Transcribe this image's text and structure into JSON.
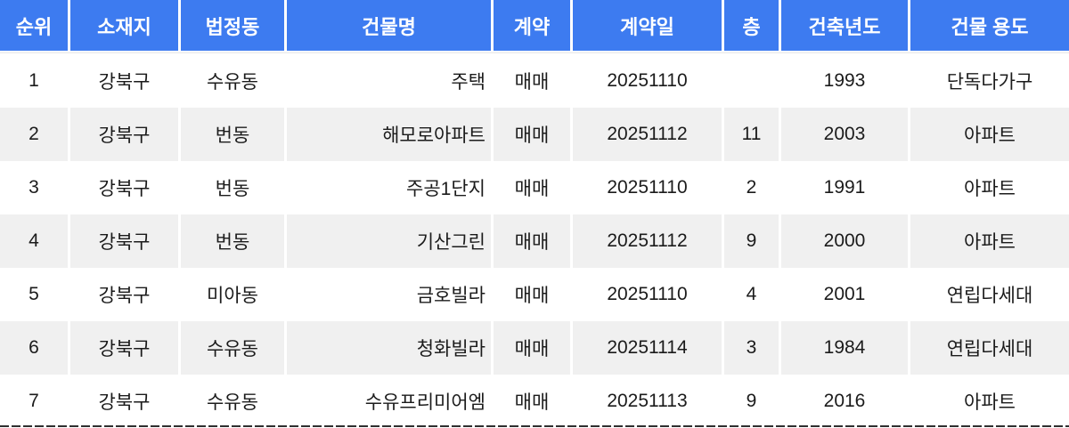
{
  "chart_data": {
    "type": "table",
    "columns": [
      "순위",
      "소재지",
      "법정동",
      "건물명",
      "계약",
      "계약일",
      "층",
      "건축년도",
      "건물 용도"
    ],
    "rows": [
      [
        "1",
        "강북구",
        "수유동",
        "주택",
        "매매",
        "20251110",
        "",
        "1993",
        "단독다가구"
      ],
      [
        "2",
        "강북구",
        "번동",
        "해모로아파트",
        "매매",
        "20251112",
        "11",
        "2003",
        "아파트"
      ],
      [
        "3",
        "강북구",
        "번동",
        "주공1단지",
        "매매",
        "20251110",
        "2",
        "1991",
        "아파트"
      ],
      [
        "4",
        "강북구",
        "번동",
        "기산그린",
        "매매",
        "20251112",
        "9",
        "2000",
        "아파트"
      ],
      [
        "5",
        "강북구",
        "미아동",
        "금호빌라",
        "매매",
        "20251110",
        "4",
        "2001",
        "연립다세대"
      ],
      [
        "6",
        "강북구",
        "수유동",
        "청화빌라",
        "매매",
        "20251114",
        "3",
        "1984",
        "연립다세대"
      ],
      [
        "7",
        "강북구",
        "수유동",
        "수유프리미어엠",
        "매매",
        "20251113",
        "9",
        "2016",
        "아파트"
      ]
    ],
    "layout": {
      "header_position": "top",
      "row_striping": "alternate",
      "building_name_alignment": "right",
      "grid": "white column gaps, dashed dark bottom border"
    }
  },
  "colors": {
    "header_bg": "#3d7bf0",
    "header_text": "#ffffff",
    "row_alt_bg": "#f0f0f0",
    "body_text": "#1b1b1b",
    "column_divider": "#ffffff",
    "header_underline": "#ececec",
    "bottom_dashed_border": "#2f2f2f"
  }
}
